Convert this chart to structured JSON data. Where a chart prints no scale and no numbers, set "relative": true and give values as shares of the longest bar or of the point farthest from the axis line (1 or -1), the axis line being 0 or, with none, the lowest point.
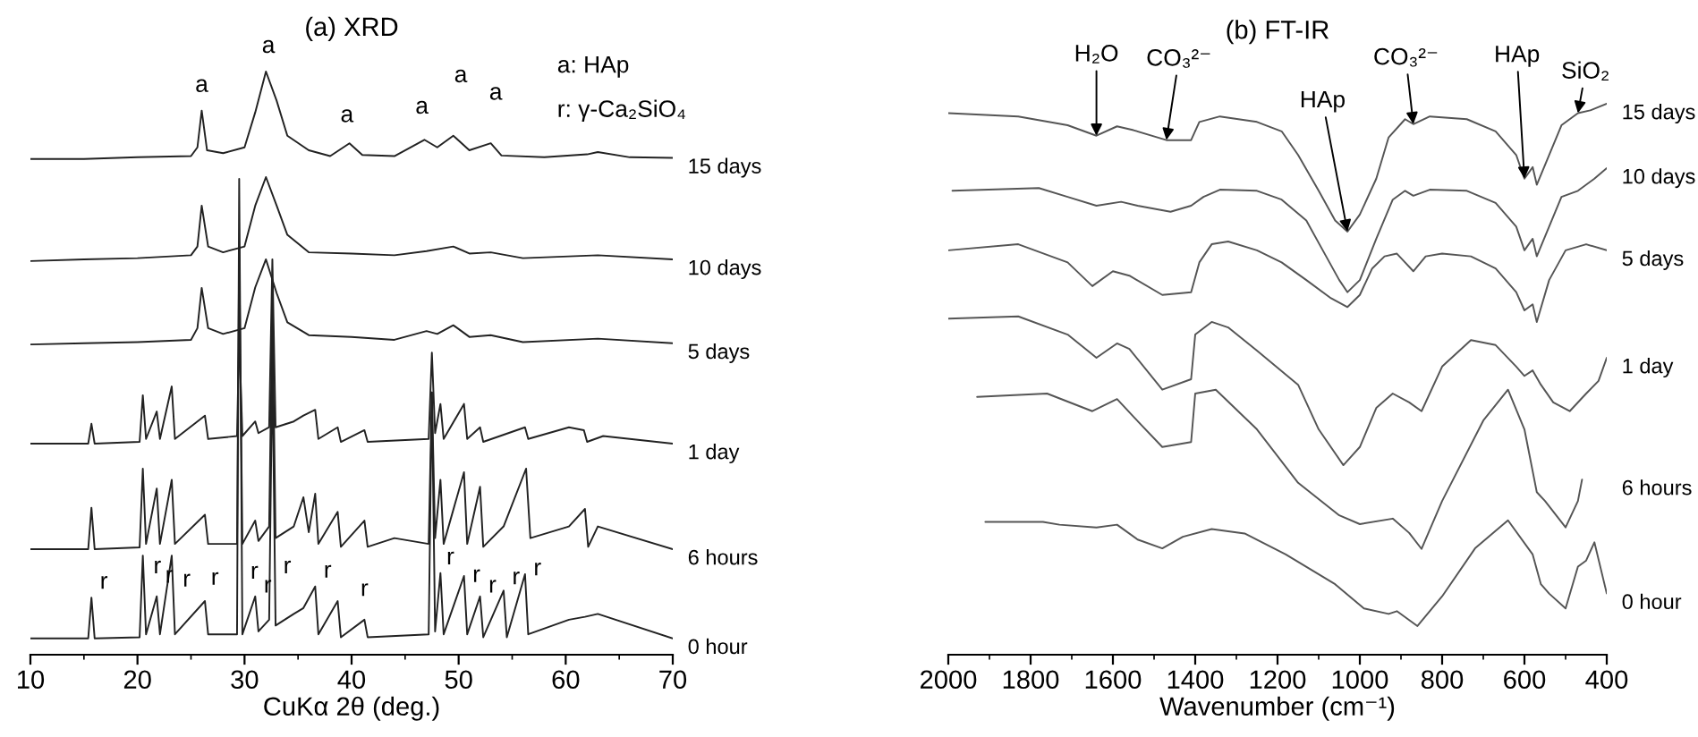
{
  "chart_data": [
    {
      "type": "line",
      "title": "(a) XRD",
      "xlabel": "CuKα 2θ (deg.)",
      "relative": true,
      "xlim": [
        10,
        70
      ],
      "xticks": [
        10,
        {
          "value": 15,
          "label": null
        },
        20,
        {
          "value": 25,
          "label": null
        },
        30,
        {
          "value": 35,
          "label": null
        },
        40,
        {
          "value": 45,
          "label": null
        },
        50,
        {
          "value": 55,
          "label": null
        },
        60,
        {
          "value": 65,
          "label": null
        },
        70
      ],
      "annotations": [
        "a: HAp",
        "r: γ-Ca₂SiO₄",
        {
          "text": "a",
          "x": 26,
          "y": 0.933
        },
        {
          "text": "a",
          "x": 32,
          "y": 1.0
        },
        {
          "text": "a",
          "x": 39.8,
          "y": 0.877
        },
        {
          "text": "a",
          "x": 46.8,
          "y": 0.883
        },
        {
          "text": "a",
          "x": 49.5,
          "y": 0.89
        },
        {
          "text": "a",
          "x": 53,
          "y": 0.877
        },
        {
          "text": "r",
          "x": 15.7,
          "y": 0.098
        },
        {
          "text": "r",
          "x": 20.46,
          "y": 0.15
        },
        {
          "text": "r",
          "x": 21.8,
          "y": 0.1
        },
        {
          "text": "r",
          "x": 23.2,
          "y": 0.17
        },
        {
          "text": "r",
          "x": 26.3,
          "y": 0.092
        },
        {
          "text": "r",
          "x": 29.76,
          "y": 0.141
        },
        {
          "text": "r",
          "x": 31,
          "y": 0.1
        },
        {
          "text": "r",
          "x": 32.83,
          "y": 0.15
        },
        {
          "text": "r",
          "x": 36.6,
          "y": 0.117
        },
        {
          "text": "r",
          "x": 41.2,
          "y": 0.06
        },
        {
          "text": "r",
          "x": 48.3,
          "y": 0.14
        },
        {
          "text": "r",
          "x": 50.5,
          "y": 0.135
        },
        {
          "text": "r",
          "x": 52,
          "y": 0.1
        },
        {
          "text": "r",
          "x": 54.2,
          "y": 0.11
        },
        {
          "text": "r",
          "x": 56.2,
          "y": 0.138
        }
      ],
      "series": [
        {
          "name": "15 days",
          "color": "#222222",
          "x": [
            10,
            15,
            20,
            25,
            25.6,
            26,
            26.5,
            28,
            30,
            31,
            32,
            33,
            34,
            36,
            38,
            39.8,
            41,
            44,
            46.8,
            48,
            49.5,
            51,
            53,
            54,
            58,
            62,
            63,
            66,
            70
          ],
          "values": [
            0.85,
            0.85,
            0.853,
            0.855,
            0.87,
            0.933,
            0.865,
            0.86,
            0.87,
            0.93,
            1.0,
            0.95,
            0.89,
            0.865,
            0.855,
            0.877,
            0.857,
            0.855,
            0.883,
            0.87,
            0.89,
            0.865,
            0.877,
            0.856,
            0.853,
            0.858,
            0.862,
            0.853,
            0.852
          ]
        },
        {
          "name": "10 days",
          "color": "#222222",
          "x": [
            10,
            15,
            20,
            25,
            25.6,
            26,
            26.6,
            28,
            30,
            31,
            32,
            33,
            34,
            36,
            40,
            44,
            47,
            49.5,
            51,
            53,
            56,
            63,
            70
          ],
          "values": [
            0.675,
            0.678,
            0.68,
            0.685,
            0.7,
            0.77,
            0.7,
            0.69,
            0.7,
            0.77,
            0.819,
            0.77,
            0.72,
            0.69,
            0.688,
            0.685,
            0.692,
            0.7,
            0.688,
            0.69,
            0.68,
            0.685,
            0.678
          ]
        },
        {
          "name": "5 days",
          "color": "#222222",
          "x": [
            10,
            15,
            20,
            25,
            25.6,
            26,
            26.6,
            28,
            30,
            31,
            32,
            33,
            34,
            36,
            40,
            44,
            47,
            48,
            49.5,
            51,
            53,
            56,
            63,
            70
          ],
          "values": [
            0.532,
            0.534,
            0.536,
            0.54,
            0.56,
            0.629,
            0.56,
            0.55,
            0.56,
            0.63,
            0.678,
            0.62,
            0.57,
            0.548,
            0.545,
            0.54,
            0.555,
            0.55,
            0.565,
            0.545,
            0.548,
            0.536,
            0.542,
            0.534
          ]
        },
        {
          "name": "1 day",
          "color": "#222222",
          "x": [
            10,
            15.4,
            15.7,
            16,
            20.2,
            20.5,
            20.8,
            21.8,
            22.1,
            23.2,
            23.5,
            26.3,
            26.6,
            29.3,
            29.5,
            29.8,
            31,
            31.3,
            32.3,
            32.6,
            32.9,
            34.6,
            35.5,
            36.6,
            36.9,
            38.7,
            39,
            41.2,
            41.5,
            47.2,
            47.5,
            47.8,
            48.3,
            48.6,
            50.5,
            50.8,
            52,
            52.3,
            56.2,
            56.5,
            60.3,
            61.7,
            62,
            63.5,
            70
          ],
          "values": [
            0.362,
            0.362,
            0.396,
            0.362,
            0.365,
            0.445,
            0.37,
            0.417,
            0.37,
            0.46,
            0.37,
            0.41,
            0.37,
            0.375,
            0.55,
            0.375,
            0.4,
            0.38,
            0.39,
            0.678,
            0.39,
            0.4,
            0.41,
            0.42,
            0.37,
            0.39,
            0.365,
            0.385,
            0.365,
            0.37,
            0.518,
            0.38,
            0.43,
            0.37,
            0.43,
            0.37,
            0.39,
            0.365,
            0.39,
            0.37,
            0.39,
            0.385,
            0.365,
            0.375,
            0.362
          ]
        },
        {
          "name": "6 hours",
          "color": "#222222",
          "x": [
            10,
            15.4,
            15.7,
            16,
            20.2,
            20.5,
            20.8,
            21.8,
            22.1,
            23.2,
            23.5,
            26.3,
            26.6,
            29.3,
            29.5,
            29.8,
            31,
            31.3,
            32.3,
            32.6,
            32.9,
            34.6,
            35.5,
            36,
            36.6,
            36.9,
            38.7,
            39,
            41.2,
            41.5,
            44,
            47.2,
            47.5,
            47.8,
            48.3,
            48.6,
            50.5,
            50.8,
            52,
            52.3,
            54.2,
            56.3,
            56.7,
            60.3,
            61.8,
            62.1,
            63,
            70
          ],
          "values": [
            0.181,
            0.181,
            0.252,
            0.181,
            0.184,
            0.319,
            0.19,
            0.285,
            0.19,
            0.3,
            0.19,
            0.24,
            0.19,
            0.19,
            0.7,
            0.19,
            0.23,
            0.195,
            0.22,
            0.6,
            0.2,
            0.22,
            0.27,
            0.21,
            0.276,
            0.19,
            0.245,
            0.185,
            0.23,
            0.185,
            0.2,
            0.19,
            0.45,
            0.2,
            0.3,
            0.19,
            0.313,
            0.19,
            0.288,
            0.185,
            0.22,
            0.319,
            0.2,
            0.22,
            0.25,
            0.185,
            0.22,
            0.181
          ]
        },
        {
          "name": "0 hour",
          "color": "#222222",
          "x": [
            10,
            15.4,
            15.7,
            16,
            20.2,
            20.5,
            20.8,
            21.8,
            22.1,
            23.2,
            23.5,
            26.3,
            26.6,
            29.3,
            29.5,
            29.8,
            31,
            31.3,
            32.3,
            32.6,
            32.9,
            34.6,
            35.5,
            36.6,
            36.9,
            38.7,
            39,
            41.2,
            41.5,
            47.2,
            47.5,
            47.8,
            48.3,
            48.6,
            50.5,
            50.8,
            52,
            52.3,
            54.2,
            54.5,
            56.2,
            56.5,
            60.3,
            61.8,
            63,
            70
          ],
          "values": [
            0.028,
            0.028,
            0.098,
            0.028,
            0.03,
            0.17,
            0.035,
            0.1,
            0.035,
            0.17,
            0.035,
            0.092,
            0.035,
            0.035,
            0.816,
            0.035,
            0.1,
            0.04,
            0.06,
            0.5,
            0.05,
            0.07,
            0.08,
            0.117,
            0.035,
            0.092,
            0.03,
            0.06,
            0.03,
            0.035,
            0.45,
            0.04,
            0.14,
            0.035,
            0.135,
            0.035,
            0.1,
            0.03,
            0.11,
            0.03,
            0.138,
            0.035,
            0.06,
            0.065,
            0.07,
            0.028
          ]
        }
      ]
    },
    {
      "type": "line",
      "title": "(b) FT-IR",
      "xlabel": "Wavenumber (cm⁻¹)",
      "relative": true,
      "xlim": [
        2000,
        400
      ],
      "xticks": [
        2000,
        {
          "value": 1900,
          "label": null
        },
        1800,
        {
          "value": 1700,
          "label": null
        },
        1600,
        {
          "value": 1500,
          "label": null
        },
        1400,
        {
          "value": 1300,
          "label": null
        },
        1200,
        {
          "value": 1100,
          "label": null
        },
        1000,
        {
          "value": 900,
          "label": null
        },
        800,
        {
          "value": 700,
          "label": null
        },
        600,
        {
          "value": 500,
          "label": null
        },
        400
      ],
      "annotations": [
        {
          "text": "H₂O",
          "x": 1640,
          "y": 0.942
        },
        {
          "text": "CO₃²⁻",
          "x": 1470,
          "y": 0.934
        },
        {
          "text": "HAp",
          "x": 1030,
          "y": 0.768
        },
        {
          "text": "CO₃²⁻",
          "x": 870,
          "y": 0.963
        },
        {
          "text": "HAp",
          "x": 600,
          "y": 0.864
        },
        {
          "text": "SiO₂",
          "x": 470,
          "y": 0.983
        }
      ],
      "series": [
        {
          "name": "15 days",
          "color": "#555555",
          "x": [
            2000,
            1830,
            1710,
            1640,
            1590,
            1550,
            1470,
            1410,
            1390,
            1340,
            1250,
            1190,
            1150,
            1100,
            1060,
            1030,
            1000,
            960,
            930,
            890,
            870,
            830,
            740,
            670,
            620,
            600,
            580,
            570,
            540,
            510,
            470,
            440,
            400
          ],
          "values": [
            0.983,
            0.977,
            0.961,
            0.942,
            0.959,
            0.952,
            0.934,
            0.934,
            0.967,
            0.977,
            0.967,
            0.95,
            0.907,
            0.842,
            0.788,
            0.768,
            0.799,
            0.864,
            0.939,
            0.972,
            0.963,
            0.977,
            0.972,
            0.95,
            0.907,
            0.864,
            0.885,
            0.853,
            0.907,
            0.961,
            0.983,
            0.988,
            1.0
          ]
        },
        {
          "name": "10 days",
          "color": "#555555",
          "x": [
            1990,
            1780,
            1710,
            1640,
            1580,
            1540,
            1460,
            1410,
            1380,
            1340,
            1250,
            1190,
            1130,
            1090,
            1050,
            1030,
            1000,
            960,
            920,
            890,
            870,
            830,
            740,
            670,
            620,
            600,
            580,
            570,
            540,
            510,
            470,
            430,
            400
          ],
          "values": [
            0.842,
            0.847,
            0.831,
            0.815,
            0.822,
            0.815,
            0.804,
            0.815,
            0.831,
            0.844,
            0.842,
            0.826,
            0.788,
            0.734,
            0.68,
            0.658,
            0.68,
            0.755,
            0.826,
            0.842,
            0.833,
            0.844,
            0.842,
            0.82,
            0.777,
            0.734,
            0.755,
            0.723,
            0.777,
            0.831,
            0.842,
            0.864,
            0.883
          ]
        },
        {
          "name": "5 days",
          "color": "#555555",
          "x": [
            2000,
            1830,
            1710,
            1650,
            1600,
            1560,
            1480,
            1410,
            1390,
            1360,
            1320,
            1250,
            1190,
            1130,
            1070,
            1030,
            1000,
            970,
            940,
            910,
            890,
            870,
            840,
            800,
            730,
            670,
            620,
            600,
            580,
            570,
            540,
            500,
            450,
            400
          ],
          "values": [
            0.734,
            0.745,
            0.712,
            0.669,
            0.696,
            0.688,
            0.653,
            0.658,
            0.712,
            0.745,
            0.75,
            0.734,
            0.712,
            0.68,
            0.647,
            0.631,
            0.653,
            0.701,
            0.723,
            0.728,
            0.712,
            0.696,
            0.723,
            0.728,
            0.723,
            0.701,
            0.658,
            0.625,
            0.636,
            0.604,
            0.68,
            0.734,
            0.745,
            0.734
          ]
        },
        {
          "name": "1 day",
          "color": "#555555",
          "x": [
            2000,
            1830,
            1710,
            1640,
            1590,
            1560,
            1480,
            1410,
            1400,
            1360,
            1320,
            1250,
            1150,
            1100,
            1040,
            1000,
            960,
            920,
            880,
            850,
            800,
            730,
            670,
            620,
            600,
            580,
            560,
            530,
            490,
            450,
            420,
            400
          ],
          "values": [
            0.61,
            0.614,
            0.581,
            0.539,
            0.565,
            0.555,
            0.481,
            0.5,
            0.581,
            0.604,
            0.594,
            0.552,
            0.49,
            0.409,
            0.344,
            0.377,
            0.448,
            0.474,
            0.458,
            0.442,
            0.523,
            0.571,
            0.562,
            0.523,
            0.506,
            0.516,
            0.49,
            0.458,
            0.442,
            0.474,
            0.497,
            0.539
          ]
        },
        {
          "name": "6 hours",
          "color": "#555555",
          "x": [
            1930,
            1760,
            1650,
            1590,
            1550,
            1480,
            1410,
            1400,
            1350,
            1250,
            1150,
            1050,
            1000,
            920,
            880,
            850,
            800,
            700,
            640,
            600,
            570,
            550,
            500,
            470,
            460
          ],
          "values": [
            0.468,
            0.474,
            0.442,
            0.464,
            0.432,
            0.377,
            0.386,
            0.474,
            0.481,
            0.409,
            0.312,
            0.253,
            0.237,
            0.247,
            0.221,
            0.192,
            0.279,
            0.425,
            0.481,
            0.409,
            0.295,
            0.279,
            0.231,
            0.279,
            0.318
          ]
        },
        {
          "name": "0 hour",
          "color": "#555555",
          "x": [
            1910,
            1770,
            1730,
            1640,
            1590,
            1540,
            1480,
            1430,
            1360,
            1280,
            1180,
            1060,
            990,
            930,
            910,
            860,
            800,
            720,
            640,
            580,
            560,
            540,
            500,
            470,
            450,
            430,
            400
          ],
          "values": [
            0.241,
            0.241,
            0.236,
            0.231,
            0.236,
            0.209,
            0.193,
            0.214,
            0.228,
            0.22,
            0.182,
            0.128,
            0.084,
            0.074,
            0.079,
            0.052,
            0.106,
            0.193,
            0.244,
            0.182,
            0.128,
            0.111,
            0.084,
            0.16,
            0.171,
            0.204,
            0.111
          ]
        }
      ]
    }
  ]
}
